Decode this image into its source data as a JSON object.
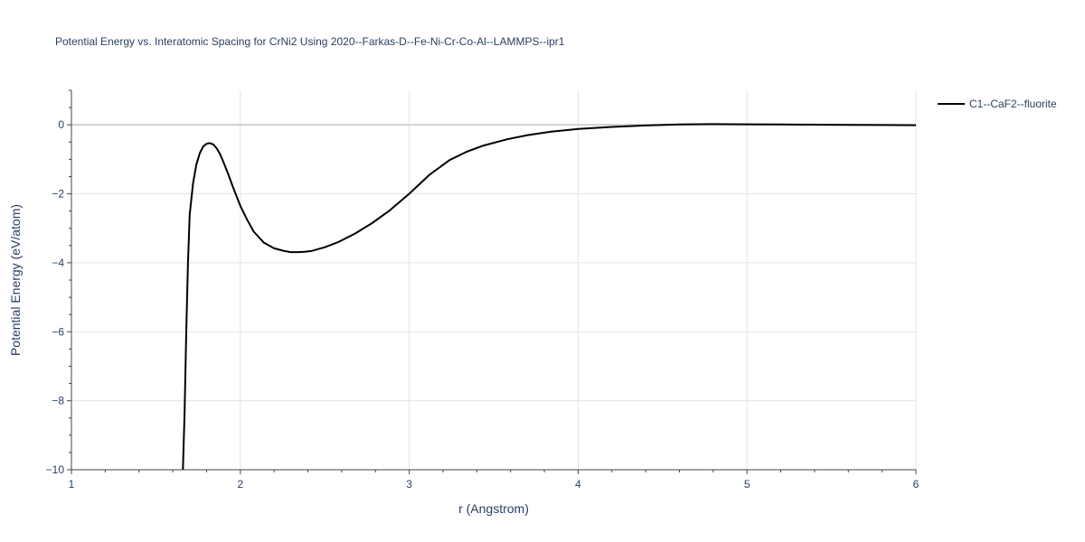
{
  "chart_data": {
    "type": "line",
    "title": "Potential Energy vs. Interatomic Spacing for CrNi2 Using 2020--Farkas-D--Fe-Ni-Cr-Co-Al--LAMMPS--ipr1",
    "xlabel": "r (Angstrom)",
    "ylabel": "Potential Energy (eV/atom)",
    "xlim": [
      1,
      6
    ],
    "ylim": [
      -10,
      1
    ],
    "xticks": [
      1,
      2,
      3,
      4,
      5,
      6
    ],
    "xtick_labels": [
      "1",
      "2",
      "3",
      "4",
      "5",
      "6"
    ],
    "yticks": [
      0,
      -2,
      -4,
      -6,
      -8,
      -10
    ],
    "ytick_labels": [
      "0",
      "−2",
      "−4",
      "−6",
      "−8",
      "−10"
    ],
    "grid": true,
    "legend_position": "top-right",
    "series": [
      {
        "name": "C1--CaF2--fluorite",
        "color": "#000000",
        "x": [
          1.66,
          1.67,
          1.68,
          1.69,
          1.7,
          1.72,
          1.74,
          1.76,
          1.78,
          1.8,
          1.82,
          1.84,
          1.86,
          1.88,
          1.9,
          1.93,
          1.96,
          2.0,
          2.04,
          2.08,
          2.14,
          2.2,
          2.26,
          2.3,
          2.34,
          2.38,
          2.42,
          2.5,
          2.58,
          2.68,
          2.78,
          2.88,
          3.0,
          3.12,
          3.24,
          3.34,
          3.44,
          3.58,
          3.7,
          3.84,
          4.0,
          4.2,
          4.4,
          4.6,
          4.8,
          5.0,
          5.2,
          5.4,
          5.6,
          5.8,
          6.0
        ],
        "y": [
          -10.0,
          -8.3,
          -6.0,
          -4.0,
          -2.6,
          -1.7,
          -1.15,
          -0.82,
          -0.63,
          -0.55,
          -0.53,
          -0.57,
          -0.68,
          -0.85,
          -1.08,
          -1.45,
          -1.85,
          -2.35,
          -2.75,
          -3.1,
          -3.42,
          -3.58,
          -3.66,
          -3.69,
          -3.69,
          -3.68,
          -3.66,
          -3.55,
          -3.4,
          -3.15,
          -2.85,
          -2.5,
          -2.0,
          -1.45,
          -1.02,
          -0.78,
          -0.6,
          -0.42,
          -0.3,
          -0.2,
          -0.12,
          -0.06,
          -0.02,
          0.01,
          0.02,
          0.015,
          0.01,
          0.005,
          0.0,
          -0.005,
          -0.01
        ]
      }
    ]
  }
}
